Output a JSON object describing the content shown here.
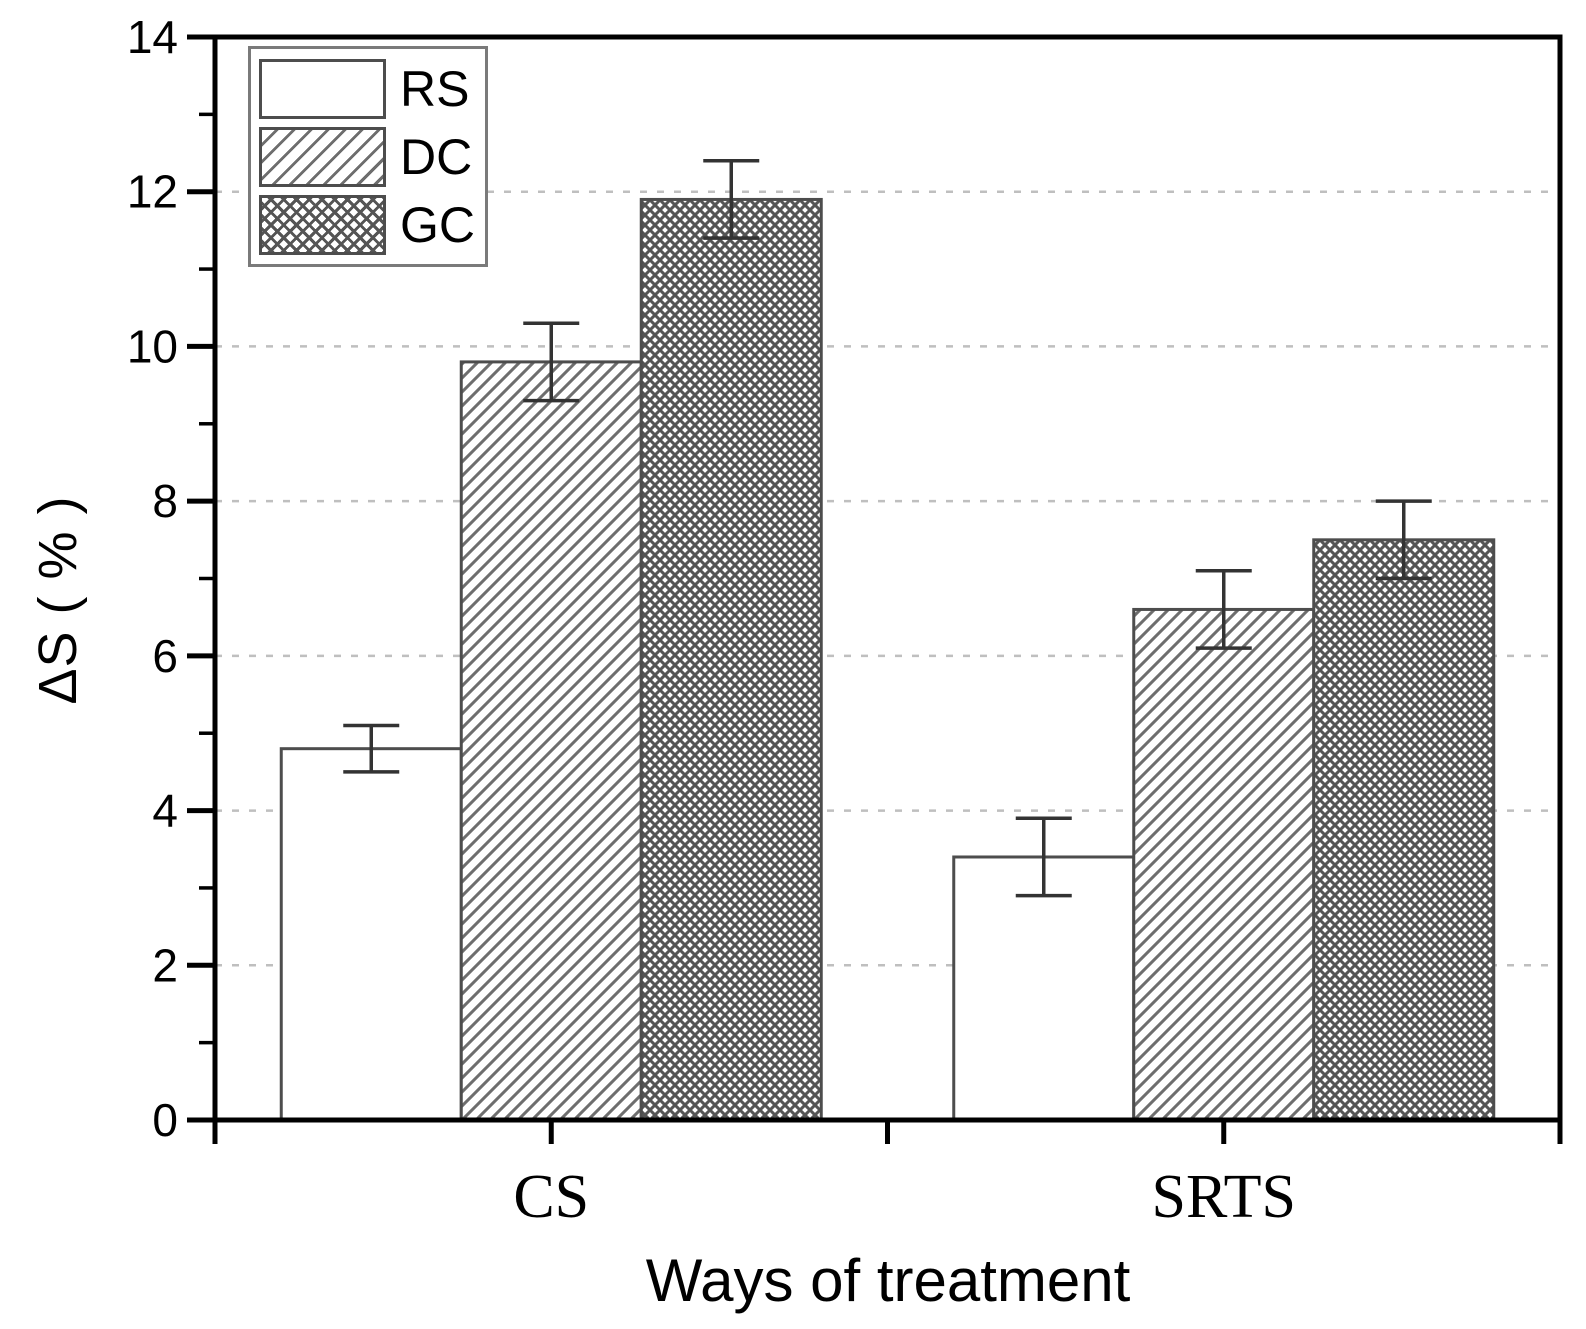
{
  "chart_data": {
    "type": "bar",
    "title": "",
    "xlabel": "Ways of treatment",
    "ylabel": "ΔS ( % )",
    "categories": [
      "CS",
      "SRTS"
    ],
    "series": [
      {
        "name": "RS",
        "pattern": "plain",
        "values": [
          4.8,
          3.4
        ],
        "errors": [
          0.3,
          0.5
        ]
      },
      {
        "name": "DC",
        "pattern": "diagonal-hatch",
        "values": [
          9.8,
          6.6
        ],
        "errors": [
          0.5,
          0.5
        ]
      },
      {
        "name": "GC",
        "pattern": "cross-hatch",
        "values": [
          11.9,
          7.5
        ],
        "errors": [
          0.5,
          0.5
        ]
      }
    ],
    "ylim": [
      0,
      14
    ],
    "yticks": [
      0,
      2,
      4,
      6,
      8,
      10,
      12,
      14
    ],
    "minor_ytick_step": 1,
    "grid": "horizontal dashed lines at major ticks",
    "legend_position": "top-left",
    "legend_labels": [
      "RS",
      "DC",
      "GC"
    ]
  },
  "colors": {
    "background": "#ffffff",
    "axis": "#000000",
    "text": "#000000",
    "grid": "#bfbfbf",
    "bar_fill": "#ffffff",
    "bar_border": "#4d4d4d",
    "hatch_line": "#6e6e6e",
    "crosshatch_line": "#555555",
    "error_bar": "#333333",
    "legend_border": "#7a7a7a"
  }
}
